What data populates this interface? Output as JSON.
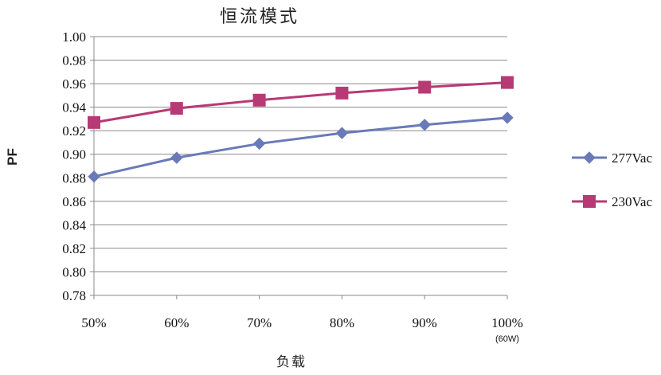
{
  "chart_data": {
    "type": "line",
    "title": "恒流模式",
    "xlabel": "负载",
    "ylabel": "PF",
    "categories": [
      "50%",
      "60%",
      "70%",
      "80%",
      "90%",
      "100%"
    ],
    "category_sublabels": [
      "",
      "",
      "",
      "",
      "",
      "(60W)"
    ],
    "ylim": [
      0.78,
      1.0
    ],
    "yticks": [
      "0.78",
      "0.80",
      "0.82",
      "0.84",
      "0.86",
      "0.88",
      "0.90",
      "0.92",
      "0.94",
      "0.96",
      "0.98",
      "1.00"
    ],
    "grid": true,
    "legend_position": "right",
    "series": [
      {
        "name": "277Vac",
        "color": "#6a7ab8",
        "marker": "diamond",
        "values": [
          0.881,
          0.897,
          0.909,
          0.918,
          0.925,
          0.931
        ]
      },
      {
        "name": "230Vac",
        "color": "#b73a75",
        "marker": "square",
        "values": [
          0.927,
          0.939,
          0.946,
          0.952,
          0.957,
          0.961
        ]
      }
    ]
  }
}
